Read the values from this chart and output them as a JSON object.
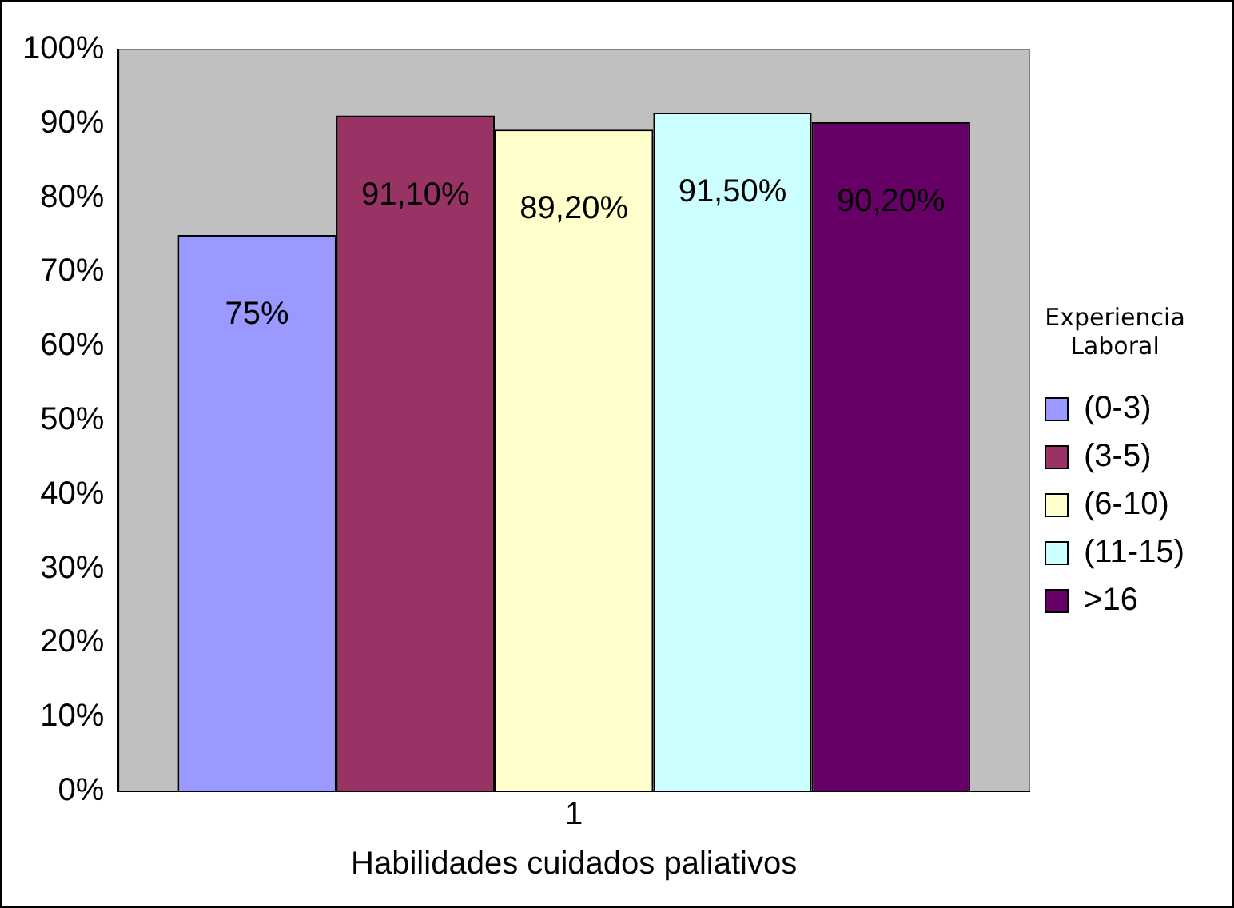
{
  "chart_data": {
    "type": "bar",
    "xlabel": "Habilidades cuidados paliativos",
    "legend_title": "Experiencia Laboral",
    "categories": [
      "1"
    ],
    "series": [
      {
        "name": "(0-3)",
        "color": "#9999ff",
        "values": [
          75
        ],
        "value_labels": [
          "75%"
        ]
      },
      {
        "name": "(3-5)",
        "color": "#993366",
        "values": [
          91.1
        ],
        "value_labels": [
          "91,10%"
        ]
      },
      {
        "name": "(6-10)",
        "color": "#ffffcc",
        "values": [
          89.2
        ],
        "value_labels": [
          "89,20%"
        ]
      },
      {
        "name": "(11-15)",
        "color": "#ccffff",
        "values": [
          91.5
        ],
        "value_labels": [
          "91,50%"
        ]
      },
      {
        "name": ">16",
        "color": "#660066",
        "values": [
          90.2
        ],
        "value_labels": [
          "90,20%"
        ]
      }
    ],
    "ylim": [
      0,
      100
    ],
    "yticks": [
      {
        "value": 0,
        "label": "0%"
      },
      {
        "value": 10,
        "label": "10%"
      },
      {
        "value": 20,
        "label": "20%"
      },
      {
        "value": 30,
        "label": "30%"
      },
      {
        "value": 40,
        "label": "40%"
      },
      {
        "value": 50,
        "label": "50%"
      },
      {
        "value": 60,
        "label": "60%"
      },
      {
        "value": 70,
        "label": "70%"
      },
      {
        "value": 80,
        "label": "80%"
      },
      {
        "value": 90,
        "label": "90%"
      },
      {
        "value": 100,
        "label": "100%"
      }
    ],
    "grid": false,
    "legend": "right"
  }
}
